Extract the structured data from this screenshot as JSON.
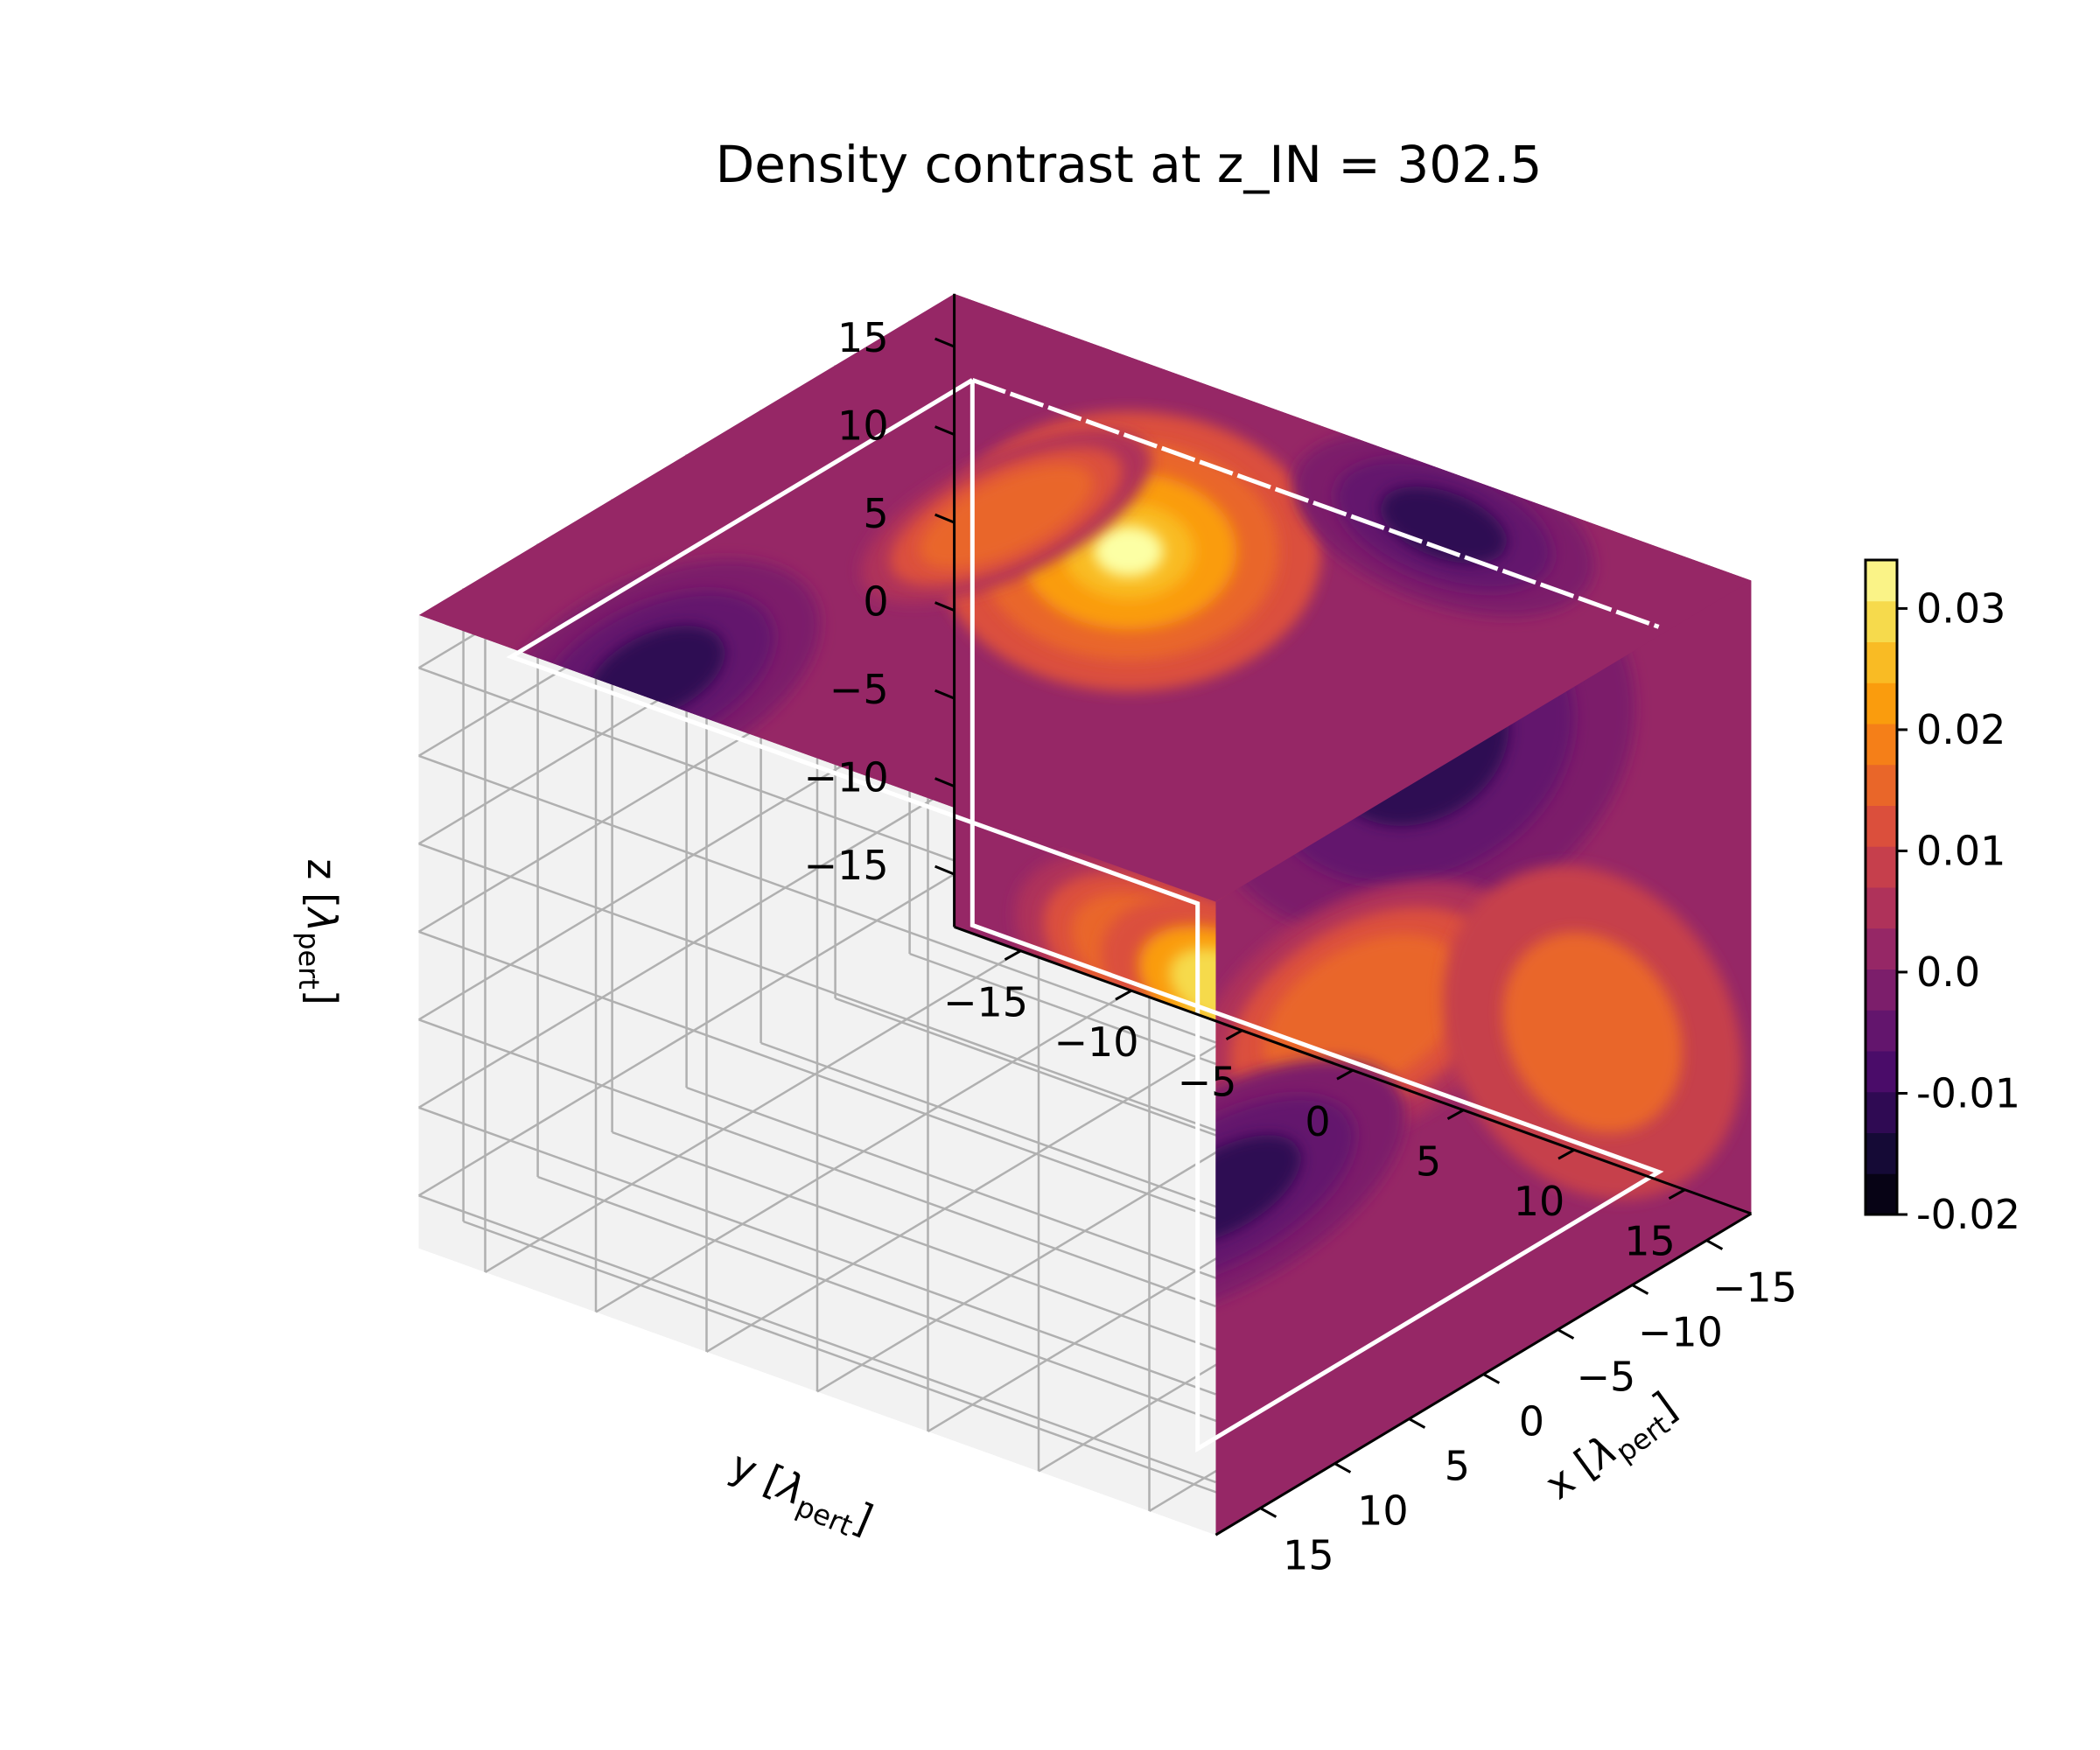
{
  "chart_data": {
    "type": "contour3d",
    "title": "Density contrast at z_IN = 302.5",
    "axes": {
      "x": {
        "label": "x [λ_pert]",
        "label_main": "x [",
        "label_sym": "λ",
        "label_sub": "pert",
        "label_end": "]",
        "ticks": [
          -15,
          -10,
          -5,
          0,
          5,
          10,
          15
        ],
        "tick_labels": [
          "−15",
          "−10",
          "−5",
          "0",
          "5",
          "10",
          "15"
        ],
        "range": [
          -18,
          18
        ]
      },
      "y": {
        "label": "y [λ_pert]",
        "label_main": "y [",
        "label_sym": "λ",
        "label_sub": "pert",
        "label_end": "]",
        "ticks": [
          -15,
          -10,
          -5,
          0,
          5,
          10,
          15
        ],
        "tick_labels": [
          "−15",
          "−10",
          "−5",
          "0",
          "5",
          "10",
          "15"
        ],
        "range": [
          -18,
          18
        ]
      },
      "z": {
        "label": "z [λ_pert]",
        "label_main": "z [",
        "label_sym": "λ",
        "label_sub": "pert",
        "label_end": "]",
        "ticks": [
          -15,
          -10,
          -5,
          0,
          5,
          10,
          15
        ],
        "tick_labels": [
          "−15",
          "−10",
          "−5",
          "0",
          "5",
          "10",
          "15"
        ],
        "range": [
          -18,
          18
        ]
      }
    },
    "colormap": "inferno",
    "colorbar": {
      "range": [
        -0.02,
        0.034
      ],
      "levels": 16,
      "ticks": [
        -0.02,
        -0.01,
        0.0,
        0.01,
        0.02,
        0.03
      ],
      "tick_labels": [
        "-0.02",
        "-0.01",
        "0.0",
        "0.01",
        "0.02",
        "0.03"
      ]
    },
    "view": {
      "elevation": 25,
      "azimuth": 30
    },
    "grid": true,
    "box_overlay": {
      "color": "#ffffff"
    }
  }
}
